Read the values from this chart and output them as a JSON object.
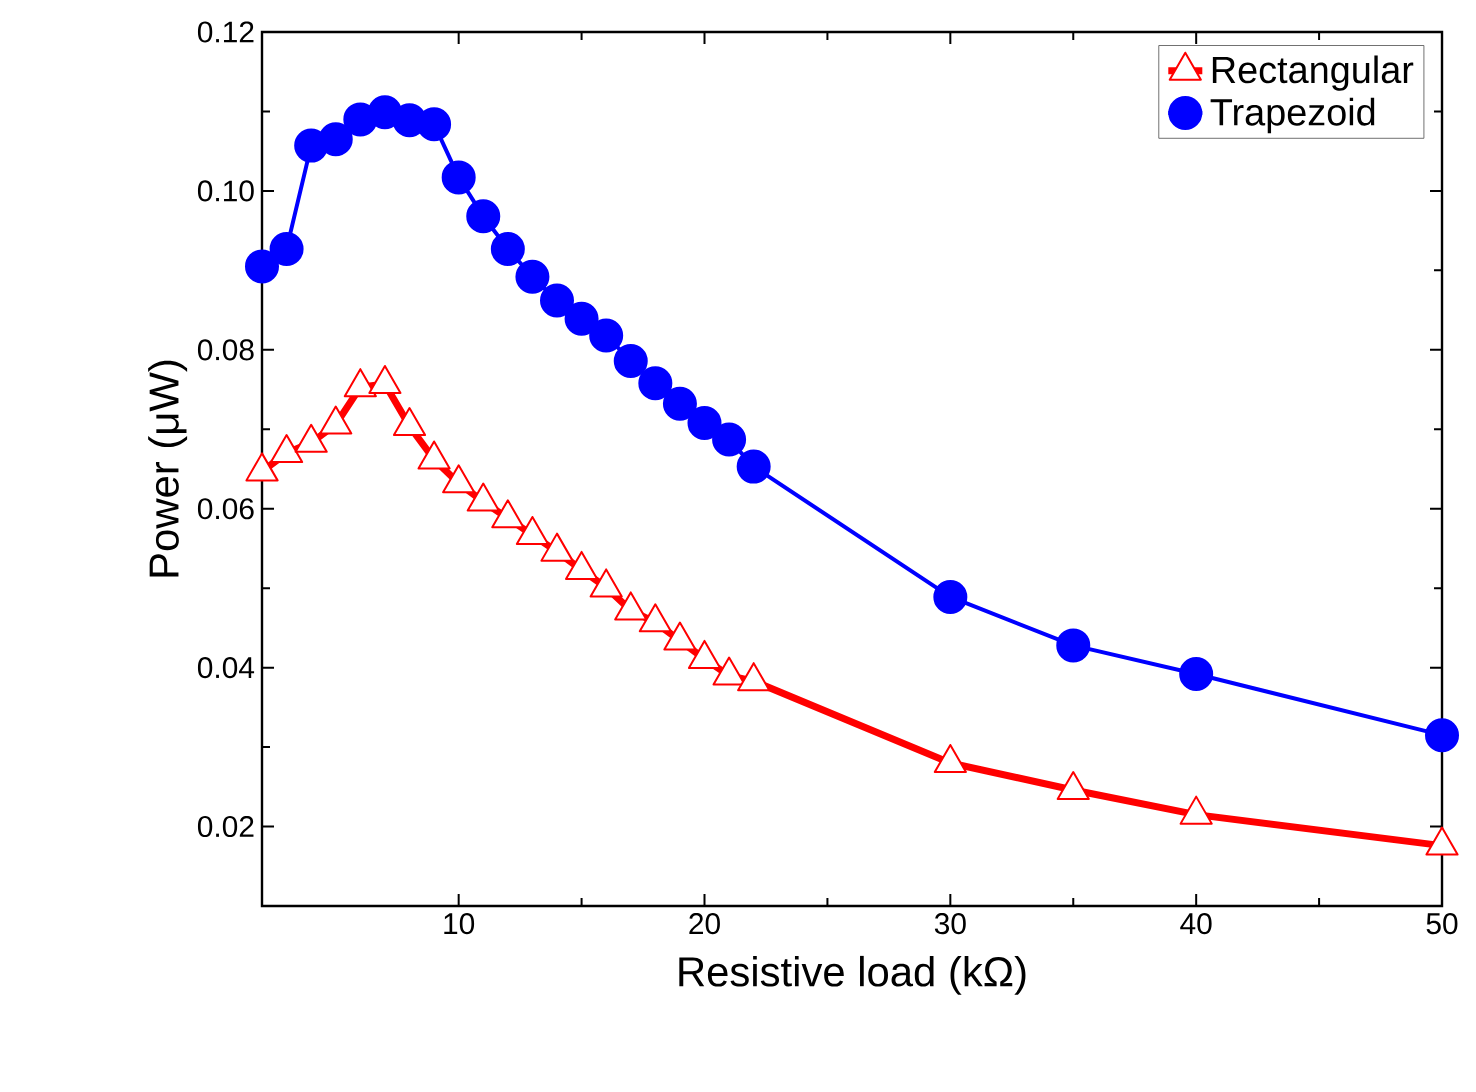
{
  "chart_data": {
    "type": "line",
    "xlabel": "Resistive load (kΩ)",
    "ylabel": "Power (μW)",
    "xlim": [
      2,
      50
    ],
    "ylim": [
      0.01,
      0.12
    ],
    "xticks": [
      10,
      20,
      30,
      40,
      50
    ],
    "yticks": [
      0.02,
      0.04,
      0.06,
      0.08,
      {
        "value": 0.1,
        "label": "0.10"
      },
      0.12
    ],
    "legend": "top right",
    "line_style": "solid",
    "x": [
      2,
      3,
      4,
      5,
      6,
      7,
      8,
      9,
      10,
      11,
      12,
      13,
      14,
      15,
      16,
      17,
      18,
      19,
      20,
      21,
      22,
      30,
      35,
      40,
      50
    ],
    "series": [
      {
        "name": "Rectangular",
        "color": "#ff0000",
        "marker": "triangle",
        "values": [
          0.0647,
          0.067,
          0.0683,
          0.0706,
          0.0753,
          0.0757,
          0.0704,
          0.0662,
          0.0632,
          0.0609,
          0.0588,
          0.0567,
          0.0546,
          0.0523,
          0.0501,
          0.0472,
          0.0457,
          0.0434,
          0.0411,
          0.039,
          0.0383,
          0.028,
          0.0246,
          0.0215,
          0.0176
        ]
      },
      {
        "name": "Trapezoid",
        "color": "#0000ff",
        "marker": "circle",
        "values": [
          0.0905,
          0.0927,
          0.1057,
          0.1065,
          0.109,
          0.1099,
          0.1089,
          0.1084,
          0.1017,
          0.0968,
          0.0927,
          0.0892,
          0.0862,
          0.0839,
          0.0818,
          0.0786,
          0.0758,
          0.0732,
          0.0708,
          0.0687,
          0.0653,
          0.0489,
          0.0428,
          0.0392,
          0.0315
        ]
      }
    ]
  }
}
